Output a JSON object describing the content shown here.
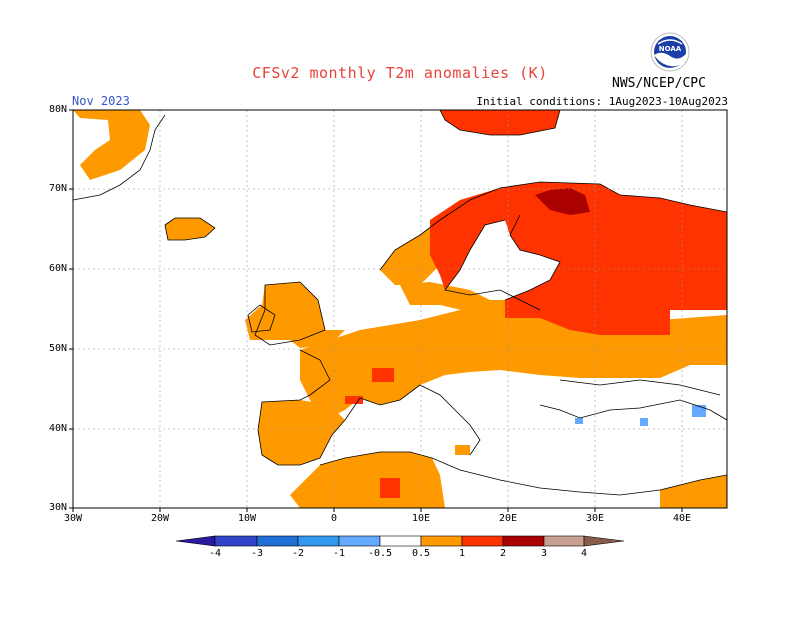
{
  "title": "CFSv2 monthly T2m anomalies (K)",
  "month": "Nov 2023",
  "initial_conditions": "Initial conditions: 1Aug2023-10Aug2023",
  "organization": "NWS/NCEP/CPC",
  "logo_text": "NOAA",
  "colors": {
    "cat_0_5_1": "#ff9900",
    "cat_1_2": "#ff3300",
    "cat_2_3": "#aa0000",
    "cat_neg_1_0_5": "#66aaff",
    "land_outline": "#000000",
    "grid": "#999999"
  },
  "map": {
    "lon_range": [
      -30,
      45
    ],
    "lat_range": [
      30,
      80
    ],
    "lat_labels": [
      "80N",
      "70N",
      "60N",
      "50N",
      "40N",
      "30N"
    ],
    "lon_labels": [
      "30W",
      "20W",
      "10W",
      "0",
      "10E",
      "20E",
      "30E",
      "40E"
    ],
    "regions": [
      {
        "name": "Greenland-east",
        "category": "0.5-1"
      },
      {
        "name": "Iceland",
        "category": "0.5-1"
      },
      {
        "name": "Svalbard",
        "category": "1-2"
      },
      {
        "name": "Scandinavia-Russia",
        "category": "1-2"
      },
      {
        "name": "Northern-Finland-core",
        "category": "2-3"
      },
      {
        "name": "British-Isles",
        "category": "0.5-1"
      },
      {
        "name": "Western-Central-Europe",
        "category": "0.5-1"
      },
      {
        "name": "Iberia",
        "category": "0.5-1"
      },
      {
        "name": "North-Africa",
        "category": "0.5-1"
      },
      {
        "name": "Eastern-Europe",
        "category": "0.5-1"
      },
      {
        "name": "Caucasus",
        "category": "-1--0.5"
      }
    ]
  },
  "colorbar": {
    "labels": [
      "-4",
      "-3",
      "-2",
      "-1",
      "-0.5",
      "0.5",
      "1",
      "2",
      "3",
      "4"
    ],
    "colors": [
      "#2a1a9e",
      "#3344cc",
      "#1f6fd6",
      "#3399ee",
      "#66aaff",
      "#ffffff",
      "#ff9900",
      "#ff3300",
      "#aa0000",
      "#c9a090",
      "#8a5a4a"
    ]
  }
}
